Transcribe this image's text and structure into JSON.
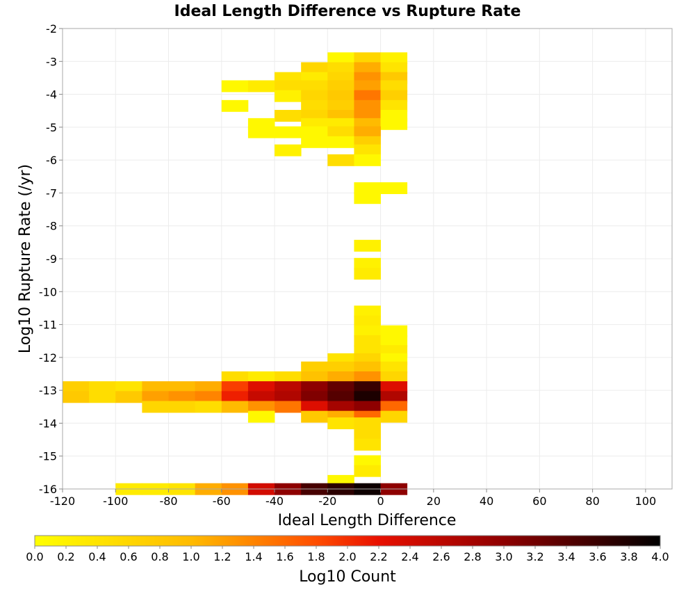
{
  "chart_data": {
    "type": "heatmap",
    "title": "Ideal Length Difference vs Rupture Rate",
    "xlabel": "Ideal Length Difference",
    "ylabel": "Log10 Rupture Rate (/yr)",
    "xlim": [
      -120,
      110
    ],
    "ylim": [
      -16,
      -2
    ],
    "x_ticks": [
      "-120",
      "-100",
      "-80",
      "-60",
      "-40",
      "-20",
      "0",
      "20",
      "40",
      "60",
      "80",
      "100"
    ],
    "y_ticks": [
      "-2",
      "-3",
      "-4",
      "-5",
      "-6",
      "-7",
      "-8",
      "-9",
      "-10",
      "-11",
      "-12",
      "-13",
      "-14",
      "-15",
      "-16"
    ],
    "grid": true,
    "bin_width_x": 10,
    "bin_height_y": 0.35,
    "colorbar": {
      "label": "Log10 Count",
      "range": [
        0.0,
        4.0
      ],
      "ticks": [
        "0.0",
        "0.2",
        "0.4",
        "0.6",
        "0.8",
        "1.0",
        "1.2",
        "1.4",
        "1.6",
        "1.8",
        "2.0",
        "2.2",
        "2.4",
        "2.6",
        "2.8",
        "3.0",
        "3.2",
        "3.4",
        "3.6",
        "3.8",
        "4.0"
      ],
      "colormap": "heat"
    },
    "cells": [
      {
        "x": -20,
        "y": -2.9,
        "v": 0.1
      },
      {
        "x": -10,
        "y": -2.9,
        "v": 0.6
      },
      {
        "x": 0,
        "y": -2.9,
        "v": 0.2
      },
      {
        "x": -30,
        "y": -3.2,
        "v": 0.6
      },
      {
        "x": -20,
        "y": -3.2,
        "v": 0.5
      },
      {
        "x": -10,
        "y": -3.2,
        "v": 1.1
      },
      {
        "x": 0,
        "y": -3.2,
        "v": 0.4
      },
      {
        "x": -40,
        "y": -3.5,
        "v": 0.4
      },
      {
        "x": -30,
        "y": -3.5,
        "v": 0.3
      },
      {
        "x": -20,
        "y": -3.5,
        "v": 0.6
      },
      {
        "x": -10,
        "y": -3.5,
        "v": 1.3
      },
      {
        "x": 0,
        "y": -3.5,
        "v": 0.8
      },
      {
        "x": -60,
        "y": -3.75,
        "v": 0.1
      },
      {
        "x": -50,
        "y": -3.75,
        "v": 0.3
      },
      {
        "x": -40,
        "y": -3.75,
        "v": 0.5
      },
      {
        "x": -30,
        "y": -3.75,
        "v": 0.5
      },
      {
        "x": -20,
        "y": -3.75,
        "v": 0.7
      },
      {
        "x": -10,
        "y": -3.75,
        "v": 1.2
      },
      {
        "x": 0,
        "y": -3.75,
        "v": 0.5
      },
      {
        "x": -40,
        "y": -4.05,
        "v": 0.2
      },
      {
        "x": -30,
        "y": -4.05,
        "v": 0.6
      },
      {
        "x": -20,
        "y": -4.05,
        "v": 0.8
      },
      {
        "x": -10,
        "y": -4.05,
        "v": 1.5
      },
      {
        "x": 0,
        "y": -4.05,
        "v": 0.7
      },
      {
        "x": -60,
        "y": -4.35,
        "v": 0.1
      },
      {
        "x": -30,
        "y": -4.35,
        "v": 0.5
      },
      {
        "x": -20,
        "y": -4.35,
        "v": 0.7
      },
      {
        "x": -10,
        "y": -4.35,
        "v": 1.3
      },
      {
        "x": 0,
        "y": -4.35,
        "v": 0.4
      },
      {
        "x": -40,
        "y": -4.65,
        "v": 0.5
      },
      {
        "x": -30,
        "y": -4.65,
        "v": 0.6
      },
      {
        "x": -20,
        "y": -4.65,
        "v": 0.9
      },
      {
        "x": -10,
        "y": -4.65,
        "v": 1.3
      },
      {
        "x": 0,
        "y": -4.65,
        "v": 0.1
      },
      {
        "x": -50,
        "y": -4.9,
        "v": 0.1
      },
      {
        "x": -30,
        "y": -4.9,
        "v": 0.3
      },
      {
        "x": -20,
        "y": -4.9,
        "v": 0.3
      },
      {
        "x": -10,
        "y": -4.9,
        "v": 1.0
      },
      {
        "x": 0,
        "y": -4.9,
        "v": 0.1
      },
      {
        "x": -50,
        "y": -5.15,
        "v": 0.1
      },
      {
        "x": -40,
        "y": -5.15,
        "v": 0.1
      },
      {
        "x": -30,
        "y": -5.15,
        "v": 0.1
      },
      {
        "x": -20,
        "y": -5.15,
        "v": 0.5
      },
      {
        "x": -10,
        "y": -5.15,
        "v": 1.1
      },
      {
        "x": -30,
        "y": -5.45,
        "v": 0.1
      },
      {
        "x": -20,
        "y": -5.45,
        "v": 0.1
      },
      {
        "x": -10,
        "y": -5.45,
        "v": 0.7
      },
      {
        "x": -40,
        "y": -5.7,
        "v": 0.2
      },
      {
        "x": -10,
        "y": -5.7,
        "v": 0.4
      },
      {
        "x": -20,
        "y": -6.0,
        "v": 0.5
      },
      {
        "x": -10,
        "y": -6.0,
        "v": 0.1
      },
      {
        "x": -10,
        "y": -6.85,
        "v": 0.1
      },
      {
        "x": 0,
        "y": -6.85,
        "v": 0.1
      },
      {
        "x": -10,
        "y": -7.15,
        "v": 0.1
      },
      {
        "x": -10,
        "y": -8.6,
        "v": 0.2
      },
      {
        "x": -10,
        "y": -9.15,
        "v": 0.2
      },
      {
        "x": -10,
        "y": -9.45,
        "v": 0.3
      },
      {
        "x": -10,
        "y": -10.6,
        "v": 0.2
      },
      {
        "x": -10,
        "y": -10.9,
        "v": 0.3
      },
      {
        "x": -10,
        "y": -11.2,
        "v": 0.2
      },
      {
        "x": 0,
        "y": -11.2,
        "v": 0.1
      },
      {
        "x": -10,
        "y": -11.5,
        "v": 0.4
      },
      {
        "x": 0,
        "y": -11.5,
        "v": 0.1
      },
      {
        "x": -10,
        "y": -11.8,
        "v": 0.4
      },
      {
        "x": 0,
        "y": -11.8,
        "v": 0.3
      },
      {
        "x": -20,
        "y": -12.05,
        "v": 0.4
      },
      {
        "x": -10,
        "y": -12.05,
        "v": 0.6
      },
      {
        "x": 0,
        "y": -12.05,
        "v": 0.1
      },
      {
        "x": -30,
        "y": -12.3,
        "v": 0.7
      },
      {
        "x": -20,
        "y": -12.3,
        "v": 0.7
      },
      {
        "x": -10,
        "y": -12.3,
        "v": 0.9
      },
      {
        "x": 0,
        "y": -12.3,
        "v": 0.4
      },
      {
        "x": -60,
        "y": -12.6,
        "v": 0.5
      },
      {
        "x": -50,
        "y": -12.6,
        "v": 0.3
      },
      {
        "x": -40,
        "y": -12.6,
        "v": 0.5
      },
      {
        "x": -30,
        "y": -12.6,
        "v": 0.9
      },
      {
        "x": -20,
        "y": -12.6,
        "v": 1.1
      },
      {
        "x": -10,
        "y": -12.6,
        "v": 1.3
      },
      {
        "x": 0,
        "y": -12.6,
        "v": 0.6
      },
      {
        "x": -120,
        "y": -12.9,
        "v": 0.7
      },
      {
        "x": -110,
        "y": -12.9,
        "v": 0.5
      },
      {
        "x": -100,
        "y": -12.9,
        "v": 0.4
      },
      {
        "x": -90,
        "y": -12.9,
        "v": 1.0
      },
      {
        "x": -80,
        "y": -12.9,
        "v": 1.0
      },
      {
        "x": -70,
        "y": -12.9,
        "v": 1.1
      },
      {
        "x": -60,
        "y": -12.9,
        "v": 1.9
      },
      {
        "x": -50,
        "y": -12.9,
        "v": 2.3
      },
      {
        "x": -40,
        "y": -12.9,
        "v": 2.6
      },
      {
        "x": -30,
        "y": -12.9,
        "v": 3.0
      },
      {
        "x": -20,
        "y": -12.9,
        "v": 3.3
      },
      {
        "x": -10,
        "y": -12.9,
        "v": 3.6
      },
      {
        "x": 0,
        "y": -12.9,
        "v": 2.3
      },
      {
        "x": -120,
        "y": -13.2,
        "v": 0.8
      },
      {
        "x": -110,
        "y": -13.2,
        "v": 0.5
      },
      {
        "x": -100,
        "y": -13.2,
        "v": 0.8
      },
      {
        "x": -90,
        "y": -13.2,
        "v": 1.2
      },
      {
        "x": -80,
        "y": -13.2,
        "v": 1.3
      },
      {
        "x": -70,
        "y": -13.2,
        "v": 1.4
      },
      {
        "x": -60,
        "y": -13.2,
        "v": 2.1
      },
      {
        "x": -50,
        "y": -13.2,
        "v": 2.5
      },
      {
        "x": -40,
        "y": -13.2,
        "v": 2.7
      },
      {
        "x": -30,
        "y": -13.2,
        "v": 3.1
      },
      {
        "x": -20,
        "y": -13.2,
        "v": 3.4
      },
      {
        "x": -10,
        "y": -13.2,
        "v": 3.8
      },
      {
        "x": 0,
        "y": -13.2,
        "v": 2.7
      },
      {
        "x": -90,
        "y": -13.5,
        "v": 0.6
      },
      {
        "x": -80,
        "y": -13.5,
        "v": 0.6
      },
      {
        "x": -70,
        "y": -13.5,
        "v": 0.5
      },
      {
        "x": -60,
        "y": -13.5,
        "v": 1.0
      },
      {
        "x": -50,
        "y": -13.5,
        "v": 1.3
      },
      {
        "x": -40,
        "y": -13.5,
        "v": 1.5
      },
      {
        "x": -30,
        "y": -13.5,
        "v": 2.3
      },
      {
        "x": -20,
        "y": -13.5,
        "v": 2.8
      },
      {
        "x": -10,
        "y": -13.5,
        "v": 3.0
      },
      {
        "x": 0,
        "y": -13.5,
        "v": 1.6
      },
      {
        "x": -50,
        "y": -13.8,
        "v": 0.1
      },
      {
        "x": -30,
        "y": -13.8,
        "v": 0.8
      },
      {
        "x": -20,
        "y": -13.8,
        "v": 1.1
      },
      {
        "x": -10,
        "y": -13.8,
        "v": 1.6
      },
      {
        "x": 0,
        "y": -13.8,
        "v": 0.6
      },
      {
        "x": -20,
        "y": -14.0,
        "v": 0.4
      },
      {
        "x": -10,
        "y": -14.0,
        "v": 0.5
      },
      {
        "x": -10,
        "y": -14.35,
        "v": 0.5
      },
      {
        "x": -10,
        "y": -14.65,
        "v": 0.4
      },
      {
        "x": -10,
        "y": -15.15,
        "v": 0.1
      },
      {
        "x": -10,
        "y": -15.45,
        "v": 0.3
      },
      {
        "x": -20,
        "y": -15.75,
        "v": 0.1
      },
      {
        "x": -100,
        "y": -16.0,
        "v": 0.3
      },
      {
        "x": -90,
        "y": -16.0,
        "v": 0.3
      },
      {
        "x": -80,
        "y": -16.0,
        "v": 0.4
      },
      {
        "x": -70,
        "y": -16.0,
        "v": 1.1
      },
      {
        "x": -60,
        "y": -16.0,
        "v": 1.3
      },
      {
        "x": -50,
        "y": -16.0,
        "v": 2.4
      },
      {
        "x": -40,
        "y": -16.0,
        "v": 3.0
      },
      {
        "x": -30,
        "y": -16.0,
        "v": 3.5
      },
      {
        "x": -20,
        "y": -16.0,
        "v": 3.7
      },
      {
        "x": -10,
        "y": -16.0,
        "v": 3.9
      },
      {
        "x": 0,
        "y": -16.0,
        "v": 3.0
      }
    ]
  }
}
